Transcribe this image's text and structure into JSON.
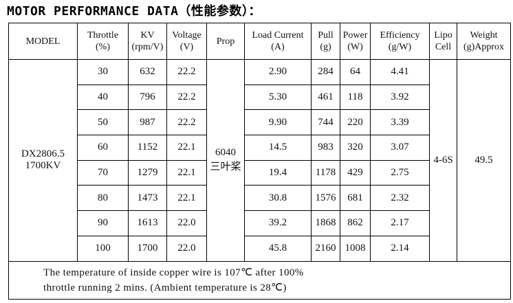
{
  "title": "MOTOR PERFORMANCE DATA（性能参数）：",
  "table": {
    "headers": [
      [
        "MODEL"
      ],
      [
        "Throttle",
        "(%)"
      ],
      [
        "KV",
        "(rpm/V)"
      ],
      [
        "Voltage",
        "(V)"
      ],
      [
        "Prop"
      ],
      [
        "Load Current",
        "(A)"
      ],
      [
        "Pull",
        "(g)"
      ],
      [
        "Power",
        "(W)"
      ],
      [
        "Efficiency",
        "(g/W)"
      ],
      [
        "Lipo",
        "Cell"
      ],
      [
        "Weight",
        "(g)Approx"
      ]
    ],
    "model": [
      "DX2806.5",
      "1700KV"
    ],
    "prop": [
      "6040",
      "三叶桨"
    ],
    "lipo_cell": "4-6S",
    "weight": "49.5",
    "rows": [
      [
        "30",
        "632",
        "22.2",
        "2.90",
        "284",
        "64",
        "4.41"
      ],
      [
        "40",
        "796",
        "22.2",
        "5.30",
        "461",
        "118",
        "3.92"
      ],
      [
        "50",
        "987",
        "22.2",
        "9.90",
        "744",
        "220",
        "3.39"
      ],
      [
        "60",
        "1152",
        "22.1",
        "14.5",
        "983",
        "320",
        "3.07"
      ],
      [
        "70",
        "1279",
        "22.1",
        "19.4",
        "1178",
        "429",
        "2.75"
      ],
      [
        "80",
        "1473",
        "22.1",
        "30.8",
        "1576",
        "681",
        "2.32"
      ],
      [
        "90",
        "1613",
        "22.0",
        "39.2",
        "1868",
        "862",
        "2.17"
      ],
      [
        "100",
        "1700",
        "22.0",
        "45.8",
        "2160",
        "1008",
        "2.14"
      ]
    ],
    "note": [
      "The temperature of inside copper wire is 107℃ after 100%",
      "throttle running 2 mins. (Ambient temperature is 28℃)"
    ]
  }
}
